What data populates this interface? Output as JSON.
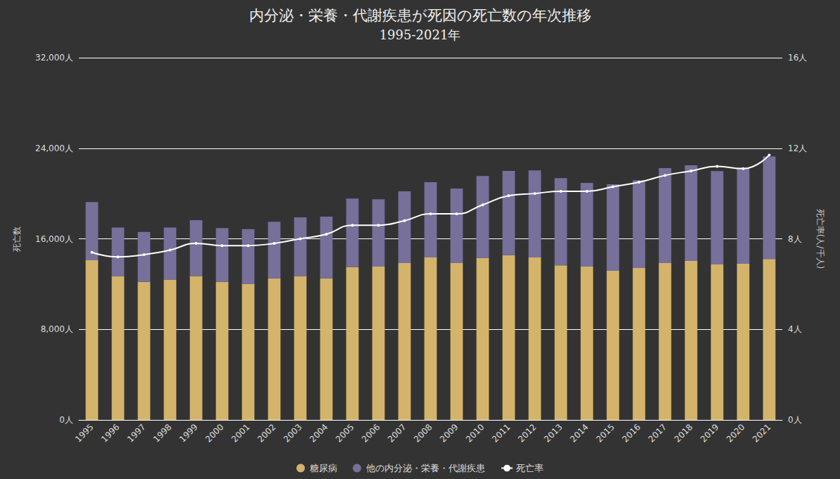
{
  "chart_data": {
    "type": "bar",
    "title": "内分泌・栄養・代謝疾患が死因の死亡数の年次推移",
    "subtitle": "1995-2021年",
    "y_label": "死亡数",
    "y2_label": "死亡率(人/千人)",
    "categories": [
      "1995",
      "1996",
      "1997",
      "1998",
      "1999",
      "2000",
      "2001",
      "2002",
      "2003",
      "2004",
      "2005",
      "2006",
      "2007",
      "2008",
      "2009",
      "2010",
      "2011",
      "2012",
      "2013",
      "2014",
      "2015",
      "2016",
      "2017",
      "2018",
      "2019",
      "2020",
      "2021"
    ],
    "stacked": true,
    "grid": true,
    "legend": "bottom",
    "ylim": [
      0,
      32000
    ],
    "yticks": [
      {
        "value": 0,
        "label": "0人"
      },
      {
        "value": 8000,
        "label": "8,000人"
      },
      {
        "value": 16000,
        "label": "16,000人"
      },
      {
        "value": 24000,
        "label": "24,000人"
      },
      {
        "value": 32000,
        "label": "32,000人"
      }
    ],
    "y2lim": [
      0,
      16
    ],
    "y2ticks": [
      {
        "value": 0,
        "label": "0人"
      },
      {
        "value": 4,
        "label": "4人"
      },
      {
        "value": 8,
        "label": "8人"
      },
      {
        "value": 12,
        "label": "12人"
      },
      {
        "value": 16,
        "label": "16人"
      }
    ],
    "series": [
      {
        "name": "糖尿病",
        "type": "bar",
        "color": "#d4b46a",
        "values": [
          14100,
          12700,
          12200,
          12400,
          12700,
          12200,
          12000,
          12500,
          12700,
          12500,
          13500,
          13550,
          13850,
          14350,
          13850,
          14300,
          14550,
          14350,
          13660,
          13540,
          13170,
          13420,
          13850,
          14040,
          13730,
          13790,
          14220
        ]
      },
      {
        "name": "他の内分泌・栄養・代謝疾患",
        "type": "bar",
        "color": "#76709a",
        "values": [
          5150,
          4300,
          4400,
          4600,
          4950,
          4750,
          4850,
          5000,
          5200,
          5450,
          6050,
          5950,
          6350,
          6650,
          6600,
          7250,
          7450,
          7700,
          7700,
          7400,
          7650,
          7750,
          8400,
          8450,
          8250,
          8500,
          9050
        ]
      },
      {
        "name": "死亡率",
        "type": "line",
        "axis": "y2",
        "color": "#ffffff",
        "marker": "circle",
        "line_style": "solid",
        "values": [
          7.4,
          7.2,
          7.3,
          7.5,
          7.8,
          7.7,
          7.7,
          7.8,
          8.0,
          8.2,
          8.6,
          8.6,
          8.8,
          9.1,
          9.1,
          9.5,
          9.9,
          10.0,
          10.1,
          10.1,
          10.3,
          10.5,
          10.8,
          11.0,
          11.2,
          11.1,
          11.7
        ]
      }
    ]
  }
}
